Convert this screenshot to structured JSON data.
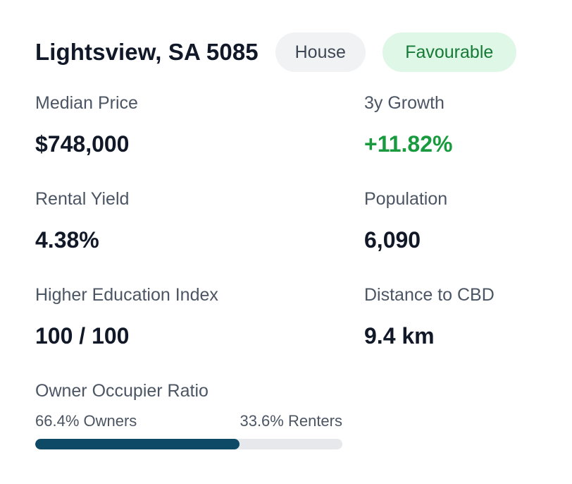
{
  "header": {
    "title": "Lightsview, SA 5085",
    "property_type": "House",
    "rating": "Favourable"
  },
  "stats": {
    "median_price": {
      "label": "Median Price",
      "value": "$748,000"
    },
    "growth_3y": {
      "label": "3y Growth",
      "value": "+11.82%"
    },
    "rental_yield": {
      "label": "Rental Yield",
      "value": "4.38%"
    },
    "population": {
      "label": "Population",
      "value": "6,090"
    },
    "higher_education_index": {
      "label": "Higher Education Index",
      "value": "100 / 100"
    },
    "distance_to_cbd": {
      "label": "Distance to CBD",
      "value": "9.4 km"
    }
  },
  "owner_occupier": {
    "title": "Owner Occupier Ratio",
    "owners_label": "66.4% Owners",
    "renters_label": "33.6% Renters",
    "owners_percent": 66.4
  },
  "colors": {
    "positive": "#1a9a3e",
    "rating_bg": "#dff7e6",
    "bar_fill": "#0e4a66",
    "bar_track": "#e6e8eb"
  }
}
